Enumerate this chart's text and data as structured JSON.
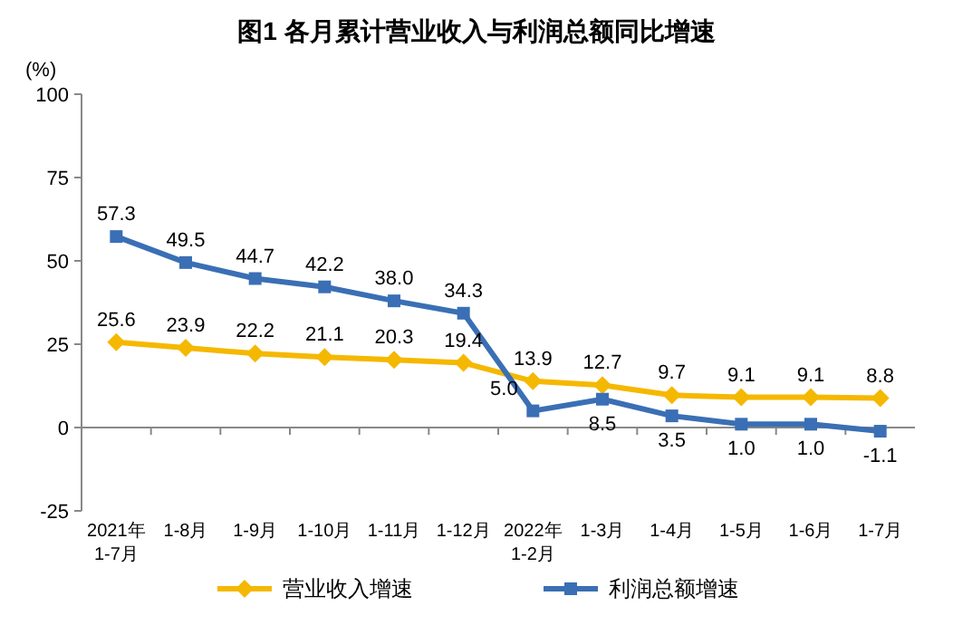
{
  "chart_data": {
    "type": "line",
    "title": "图1  各月累计营业收入与利润总额同比增速",
    "ylabel": "(%)",
    "categories": [
      "2021年\n1-7月",
      "1-8月",
      "1-9月",
      "1-10月",
      "1-11月",
      "1-12月",
      "2022年\n1-2月",
      "1-3月",
      "1-4月",
      "1-5月",
      "1-6月",
      "1-7月"
    ],
    "series": [
      {
        "name": "营业收入增速",
        "color": "#f5b800",
        "marker": "diamond",
        "values": [
          25.6,
          23.9,
          22.2,
          21.1,
          20.3,
          19.4,
          13.9,
          12.7,
          9.7,
          9.1,
          9.1,
          8.8
        ],
        "value_labels": [
          "25.6",
          "23.9",
          "22.2",
          "21.1",
          "20.3",
          "19.4",
          "13.9",
          "12.7",
          "9.7",
          "9.1",
          "9.1",
          "8.8"
        ]
      },
      {
        "name": "利润总额增速",
        "color": "#3a6fb5",
        "marker": "square",
        "values": [
          57.3,
          49.5,
          44.7,
          42.2,
          38.0,
          34.3,
          5.0,
          8.5,
          3.5,
          1.0,
          1.0,
          -1.1
        ],
        "value_labels": [
          "57.3",
          "49.5",
          "44.7",
          "42.2",
          "38.0",
          "34.3",
          "5.0",
          "8.5",
          "3.5",
          "1.0",
          "1.0",
          "-1.1"
        ]
      }
    ],
    "ylim": [
      -25,
      100
    ],
    "yticks": [
      -25,
      0,
      25,
      50,
      75,
      100
    ],
    "legend": "bottom",
    "line_style": "solid"
  }
}
